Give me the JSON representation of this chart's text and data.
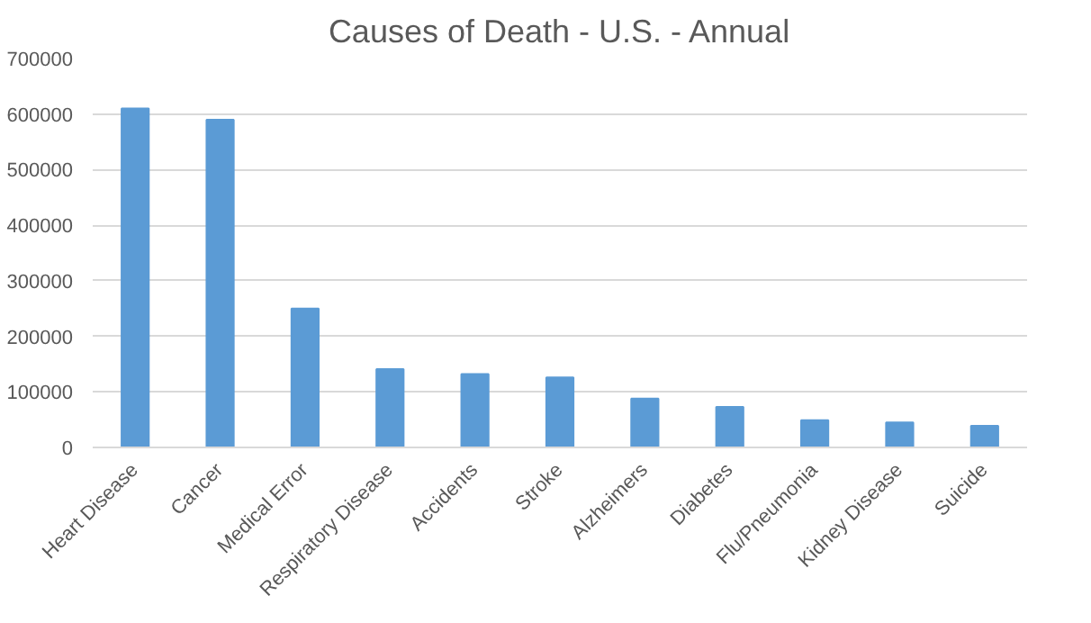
{
  "chart_data": {
    "type": "bar",
    "title": "Causes of Death - U.S. - Annual",
    "categories": [
      "Heart Disease",
      "Cancer",
      "Medical Error",
      "Respiratory Disease",
      "Accidents",
      "Stroke",
      "Alzheimers",
      "Diabetes",
      "Flu/Pneumonia",
      "Kidney Disease",
      "Suicide"
    ],
    "values": [
      610000,
      590000,
      250000,
      141000,
      132000,
      126000,
      88000,
      73000,
      49000,
      45000,
      39000
    ],
    "color": "#5b9bd5",
    "ylim": [
      0,
      700000
    ],
    "yticks": [
      0,
      100000,
      200000,
      300000,
      400000,
      500000,
      600000,
      700000
    ],
    "grid": "y"
  }
}
